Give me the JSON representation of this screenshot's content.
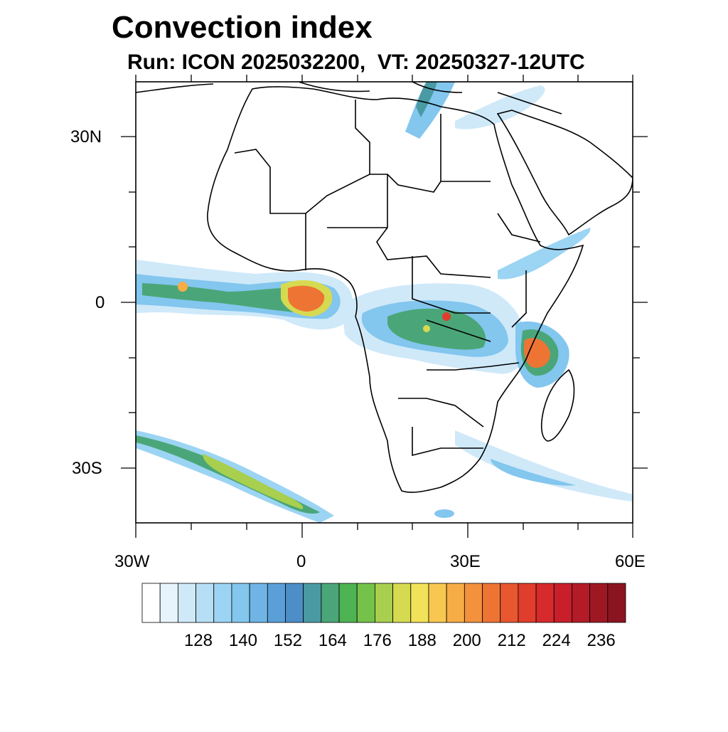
{
  "header": {
    "title": "Convection index",
    "subtitle": "Run: ICON 2025032200,  VT: 20250327-12UTC"
  },
  "map": {
    "lon_range": [
      -30,
      60
    ],
    "lat_range": [
      -40,
      40
    ],
    "lon_tick_labels": [
      "30W",
      "0",
      "30E",
      "60E"
    ],
    "lat_tick_labels": [
      "30N",
      "0",
      "30S"
    ]
  },
  "colorbar": {
    "labels": [
      "128",
      "140",
      "152",
      "164",
      "176",
      "188",
      "200",
      "212",
      "224",
      "236"
    ],
    "colors": [
      "#ffffff",
      "#e8f4fc",
      "#cfe9f9",
      "#b6dff6",
      "#9cd4f3",
      "#83c6ee",
      "#6fb4e5",
      "#5b9fd8",
      "#4d8dc8",
      "#4a9aa4",
      "#4aa678",
      "#4eb352",
      "#74c24a",
      "#a8cf4e",
      "#d6da50",
      "#f2e25a",
      "#f8c74f",
      "#f7ad45",
      "#f3913c",
      "#ee7434",
      "#e8572f",
      "#e03d2c",
      "#d62a2c",
      "#c81f2a",
      "#b31b27",
      "#9e1823",
      "#8a1520"
    ]
  }
}
